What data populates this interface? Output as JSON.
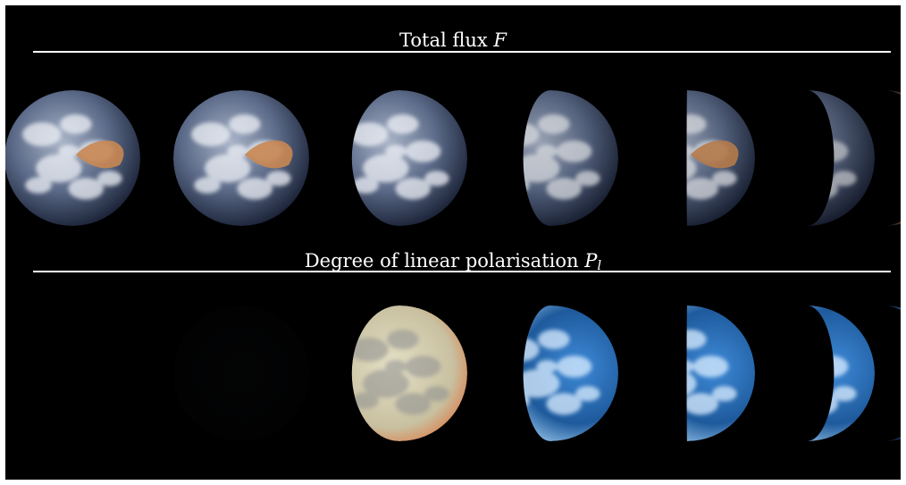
{
  "sections": {
    "top": {
      "title": "Total flux",
      "symbol": "F",
      "subscript": ""
    },
    "bottom": {
      "title": "Degree of linear polarisation",
      "symbol": "P",
      "subscript": "l"
    }
  },
  "colors": {
    "background": "#000000",
    "title_text": "#ffffff",
    "divider": "#ffffff",
    "ocean_flux": "#3a4a68",
    "cloud": "#eef1f6",
    "desert": "#c98752",
    "polarisation_blue": "#2f79c9",
    "polarisation_pale": "#d9d3b4"
  },
  "globes": {
    "flux": [
      {
        "phase": 1.0,
        "brightness": 1.0,
        "tint": "flux",
        "desert": true
      },
      {
        "phase": 1.0,
        "brightness": 1.0,
        "tint": "flux",
        "desert": true
      },
      {
        "phase": 0.85,
        "brightness": 1.0,
        "tint": "flux",
        "desert": false
      },
      {
        "phase": 0.7,
        "brightness": 0.9,
        "tint": "flux",
        "desert": false
      },
      {
        "phase": 0.5,
        "brightness": 0.9,
        "tint": "flux",
        "desert": true
      },
      {
        "phase": 0.3,
        "brightness": 0.8,
        "tint": "flux",
        "desert": false
      },
      {
        "phase": 0.15,
        "brightness": 0.8,
        "tint": "flux-warm",
        "desert": false
      }
    ],
    "polarisation": [
      {
        "phase": 1.0,
        "brightness": 0.0,
        "tint": "none"
      },
      {
        "phase": 1.0,
        "brightness": 0.12,
        "tint": "dark"
      },
      {
        "phase": 0.85,
        "brightness": 1.0,
        "tint": "pale"
      },
      {
        "phase": 0.7,
        "brightness": 1.0,
        "tint": "blue"
      },
      {
        "phase": 0.5,
        "brightness": 1.0,
        "tint": "blue"
      },
      {
        "phase": 0.3,
        "brightness": 1.0,
        "tint": "blue"
      },
      {
        "phase": 0.15,
        "brightness": 1.0,
        "tint": "blue-warm"
      }
    ]
  }
}
